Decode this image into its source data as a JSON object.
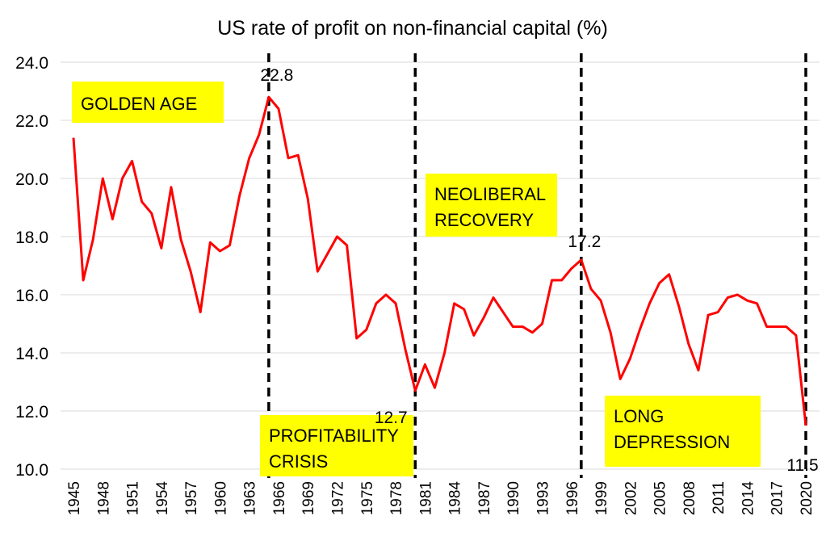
{
  "chart_data": {
    "type": "line",
    "title": "US rate of profit on non-financial capital (%)",
    "xlabel": "",
    "ylabel": "",
    "ylim": [
      10,
      24
    ],
    "yticks": [
      "10.0",
      "12.0",
      "14.0",
      "16.0",
      "18.0",
      "20.0",
      "22.0",
      "24.0"
    ],
    "xticks": [
      "1945",
      "1948",
      "1951",
      "1954",
      "1957",
      "1960",
      "1963",
      "1966",
      "1969",
      "1972",
      "1975",
      "1978",
      "1981",
      "1984",
      "1987",
      "1990",
      "1993",
      "1996",
      "1999",
      "2002",
      "2005",
      "2008",
      "2011",
      "2014",
      "2017",
      "2020"
    ],
    "grid": true,
    "series": [
      {
        "name": "Rate of profit",
        "color": "#ff0000",
        "x_start": 1945,
        "values": [
          21.4,
          16.5,
          17.9,
          20.0,
          18.6,
          20.0,
          20.6,
          19.2,
          18.8,
          17.6,
          19.7,
          17.9,
          16.8,
          15.4,
          17.8,
          17.5,
          17.7,
          19.4,
          20.7,
          21.5,
          22.8,
          22.4,
          20.7,
          20.8,
          19.3,
          16.8,
          17.4,
          18.0,
          17.7,
          14.5,
          14.8,
          15.7,
          16.0,
          15.7,
          14.1,
          12.7,
          13.6,
          12.8,
          14.0,
          15.7,
          15.5,
          14.6,
          15.2,
          15.9,
          15.4,
          14.9,
          14.9,
          14.7,
          15.0,
          16.5,
          16.5,
          16.9,
          17.2,
          16.2,
          15.8,
          14.7,
          13.1,
          13.8,
          14.8,
          15.7,
          16.4,
          16.7,
          15.6,
          14.3,
          13.4,
          15.3,
          15.4,
          15.9,
          16.0,
          15.8,
          15.7,
          14.9,
          14.9,
          14.9,
          14.6,
          11.5
        ]
      }
    ],
    "vlines": [
      1965,
      1980,
      1997,
      2020
    ],
    "data_labels": [
      {
        "year": 1965,
        "text": "22.8"
      },
      {
        "year": 1980,
        "text": "12.7"
      },
      {
        "year": 1997,
        "text": "17.2"
      },
      {
        "year": 2020,
        "text": "11.5"
      }
    ],
    "annotations": [
      {
        "lines": [
          "GOLDEN AGE"
        ],
        "highlight": "#ffff00"
      },
      {
        "lines": [
          "PROFITABILITY",
          "CRISIS"
        ],
        "highlight": "#ffff00"
      },
      {
        "lines": [
          "NEOLIBERAL",
          "RECOVERY"
        ],
        "highlight": "#ffff00"
      },
      {
        "lines": [
          "LONG",
          "DEPRESSION"
        ],
        "highlight": "#ffff00"
      }
    ]
  }
}
